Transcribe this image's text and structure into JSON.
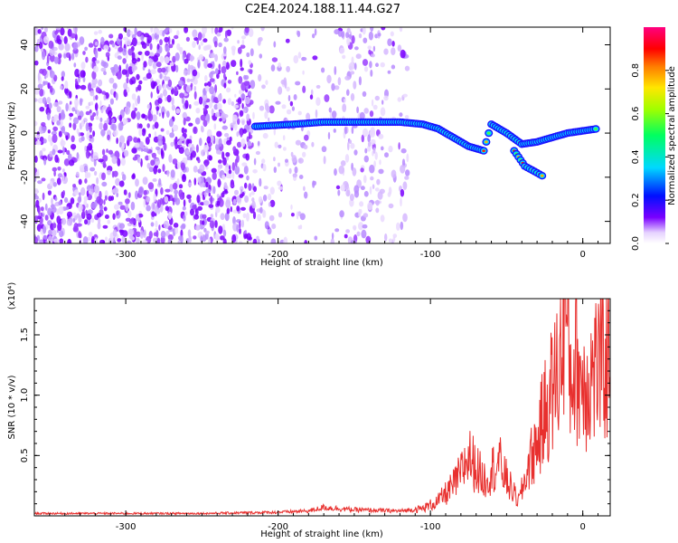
{
  "title": "C2E4.2024.188.11.44.G27",
  "chart_data": [
    {
      "type": "heatmap",
      "xlabel": "Height of straight line (km)",
      "ylabel": "Frequency (Hz)",
      "xlim": [
        -360,
        18
      ],
      "ylim": [
        -50,
        48
      ],
      "x_ticks": [
        -300,
        -200,
        -100,
        0
      ],
      "y_ticks": [
        -40,
        -20,
        0,
        20,
        40
      ],
      "colorbar": {
        "label": "Normalized spectral amplitude",
        "range": [
          0,
          1
        ],
        "ticks": [
          "0.0",
          "0.2",
          "0.4",
          "0.6",
          "0.8"
        ]
      },
      "ridge": [
        {
          "x": -215,
          "y": 3
        },
        {
          "x": -190,
          "y": 4
        },
        {
          "x": -170,
          "y": 5
        },
        {
          "x": -150,
          "y": 5
        },
        {
          "x": -135,
          "y": 5
        },
        {
          "x": -120,
          "y": 5
        },
        {
          "x": -105,
          "y": 4
        },
        {
          "x": -95,
          "y": 2
        },
        {
          "x": -85,
          "y": -2
        },
        {
          "x": -75,
          "y": -6
        },
        {
          "x": -65,
          "y": -8
        },
        {
          "x": -60,
          "y": 4
        },
        {
          "x": -50,
          "y": 0
        },
        {
          "x": -40,
          "y": -5
        },
        {
          "x": -30,
          "y": -4
        },
        {
          "x": -20,
          "y": -2
        },
        {
          "x": -10,
          "y": 0
        },
        {
          "x": 0,
          "y": 1
        },
        {
          "x": 10,
          "y": 2
        }
      ],
      "branch": [
        {
          "x": -45,
          "y": -8
        },
        {
          "x": -38,
          "y": -15
        },
        {
          "x": -30,
          "y": -18
        },
        {
          "x": -25,
          "y": -20
        }
      ]
    },
    {
      "type": "line",
      "xlabel": "Height of straight line (km)",
      "ylabel": "SNR (10 * v/v)",
      "scale_note": "(x10⁴)",
      "xlim": [
        -360,
        18
      ],
      "ylim": [
        0,
        1.8
      ],
      "x_ticks": [
        -300,
        -200,
        -100,
        0
      ],
      "y_ticks": [
        0.5,
        1.0,
        1.5
      ],
      "color": "#e8302e",
      "series": [
        {
          "x": [
            -360,
            -300,
            -250,
            -200,
            -180,
            -170,
            -150,
            -120,
            -105,
            -95,
            -85,
            -80,
            -75,
            -70,
            -65,
            -60,
            -55,
            -50,
            -45,
            -42,
            -38,
            -35,
            -30,
            -25,
            -20,
            -15,
            -12,
            -8,
            -5,
            0,
            5,
            10,
            18
          ],
          "y": [
            0.02,
            0.02,
            0.02,
            0.03,
            0.04,
            0.07,
            0.05,
            0.04,
            0.06,
            0.12,
            0.25,
            0.35,
            0.5,
            0.4,
            0.3,
            0.38,
            0.45,
            0.3,
            0.18,
            0.12,
            0.3,
            0.45,
            0.6,
            0.85,
            1.05,
            1.25,
            1.8,
            1.15,
            1.3,
            1.1,
            1.15,
            1.25,
            1.3
          ]
        }
      ]
    }
  ]
}
